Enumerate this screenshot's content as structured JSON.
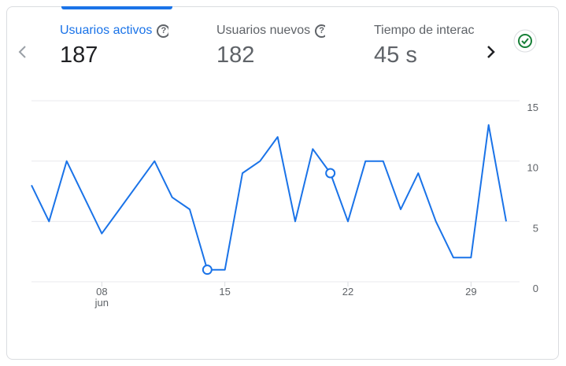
{
  "tabs": [
    {
      "label": "Usuarios activos",
      "value": "187",
      "selected": true
    },
    {
      "label": "Usuarios nuevos",
      "value": "182",
      "selected": false
    },
    {
      "label": "Tiempo de interacción",
      "value": "45 s",
      "selected": false
    }
  ],
  "chart_data": {
    "type": "line",
    "categories": [
      null,
      null,
      null,
      null,
      "08",
      null,
      null,
      null,
      null,
      null,
      null,
      "15",
      null,
      null,
      null,
      null,
      null,
      null,
      "22",
      null,
      null,
      null,
      null,
      null,
      null,
      "29",
      null,
      null
    ],
    "x_sublabel": "jun",
    "series": [
      {
        "color": "#1a73e8",
        "values": [
          8,
          5,
          10,
          7,
          4,
          6,
          8,
          10,
          7,
          6,
          1,
          1,
          9,
          10,
          12,
          5,
          11,
          9,
          5,
          10,
          10,
          6,
          9,
          5,
          2,
          2,
          13,
          5
        ]
      }
    ],
    "markers": [
      10,
      17
    ],
    "ylim": [
      0,
      15
    ],
    "yticks": [
      0,
      5,
      10,
      15
    ],
    "grid": true
  }
}
